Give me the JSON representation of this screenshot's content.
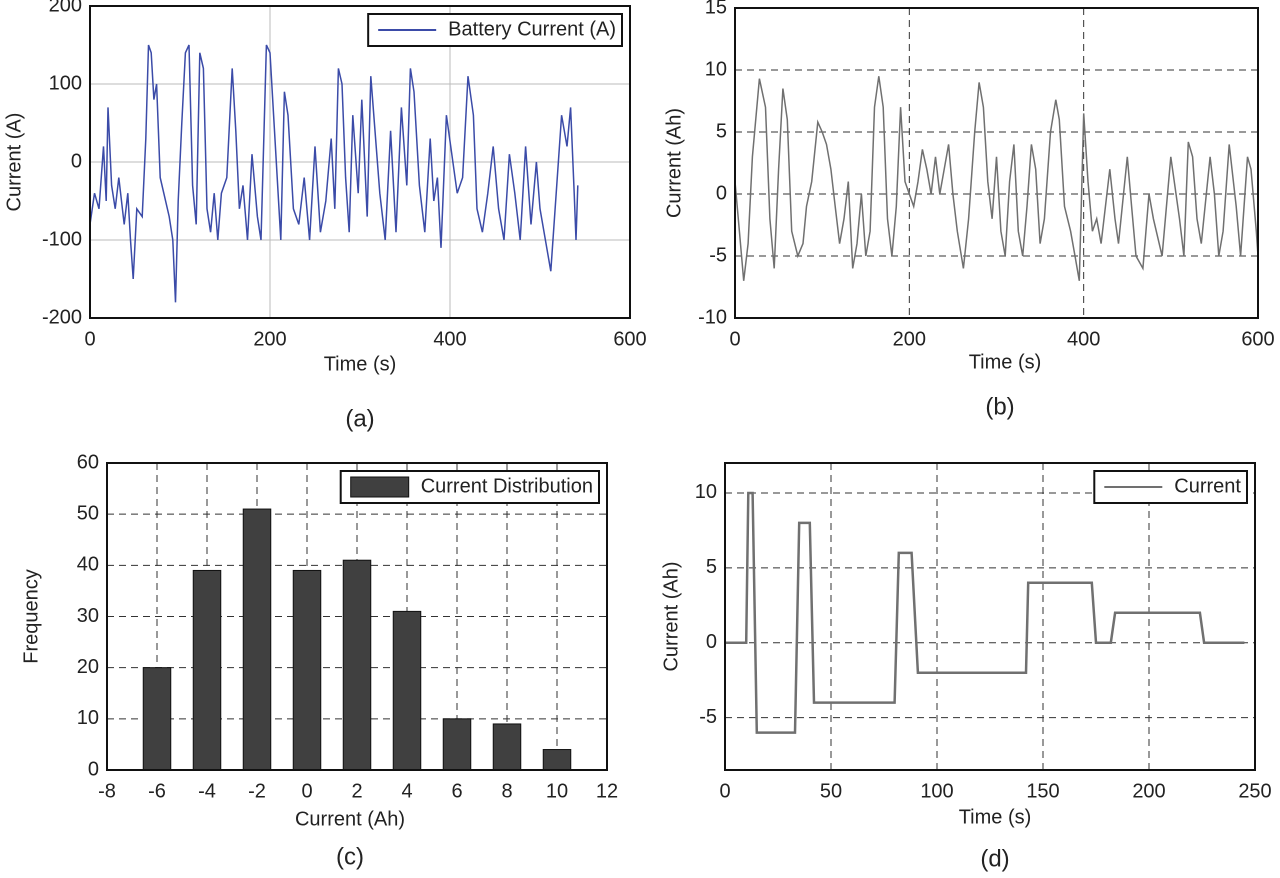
{
  "chart_data": [
    {
      "type": "line",
      "caption": "(a)",
      "xlabel": "Time (s)",
      "ylabel": "Current (A)",
      "xlim": [
        0,
        600
      ],
      "ylim": [
        -200,
        200
      ],
      "xticks": [
        0,
        200,
        400,
        600
      ],
      "yticks": [
        -200,
        -100,
        0,
        100,
        200
      ],
      "grid": true,
      "grid_style": "solid",
      "legend": "upper right",
      "x": [
        0,
        5,
        10,
        15,
        18,
        20,
        24,
        28,
        32,
        38,
        42,
        45,
        48,
        52,
        58,
        62,
        65,
        68,
        71,
        74,
        78,
        82,
        88,
        92,
        95,
        98,
        102,
        106,
        110,
        114,
        118,
        122,
        126,
        130,
        134,
        138,
        142,
        146,
        152,
        158,
        162,
        166,
        170,
        175,
        180,
        186,
        190,
        196,
        200,
        204,
        208,
        212,
        216,
        220,
        226,
        232,
        238,
        244,
        250,
        256,
        262,
        268,
        272,
        276,
        280,
        284,
        288,
        292,
        298,
        302,
        308,
        312,
        318,
        322,
        328,
        334,
        340,
        346,
        352,
        356,
        360,
        366,
        372,
        378,
        382,
        386,
        390,
        396,
        402,
        408,
        414,
        420,
        426,
        430,
        436,
        442,
        448,
        454,
        460,
        466,
        472,
        478,
        484,
        490,
        496,
        500,
        506,
        512,
        518,
        524,
        530,
        534,
        538,
        540,
        542
      ],
      "series": [
        {
          "name": "Battery Current (A)",
          "color": "#3b4ba8",
          "values": [
            -80,
            -40,
            -60,
            20,
            -50,
            70,
            -30,
            -60,
            -20,
            -80,
            -40,
            -100,
            -150,
            -60,
            -70,
            30,
            150,
            140,
            80,
            100,
            -20,
            -40,
            -70,
            -100,
            -180,
            -50,
            50,
            140,
            150,
            -30,
            -80,
            140,
            120,
            -60,
            -90,
            -40,
            -100,
            -40,
            -20,
            120,
            40,
            -60,
            -30,
            -100,
            10,
            -70,
            -100,
            150,
            140,
            60,
            -20,
            -100,
            90,
            60,
            -60,
            -80,
            -20,
            -100,
            20,
            -90,
            -50,
            30,
            -60,
            120,
            100,
            -20,
            -90,
            60,
            -40,
            80,
            -70,
            110,
            20,
            -40,
            -100,
            40,
            -90,
            70,
            -30,
            120,
            90,
            -30,
            -90,
            30,
            -50,
            -20,
            -110,
            60,
            10,
            -40,
            -20,
            110,
            60,
            -60,
            -90,
            -40,
            20,
            -60,
            -100,
            10,
            -40,
            -100,
            20,
            -80,
            0,
            -60,
            -100,
            -140,
            -40,
            60,
            20,
            70,
            -40,
            -100,
            -30
          ]
        }
      ]
    },
    {
      "type": "line",
      "caption": "(b)",
      "xlabel": "Time (s)",
      "ylabel": "Current (Ah)",
      "xlim": [
        0,
        600
      ],
      "ylim": [
        -10,
        15
      ],
      "xticks": [
        0,
        200,
        400,
        600
      ],
      "yticks": [
        -10,
        -5,
        0,
        5,
        10,
        15
      ],
      "grid": true,
      "grid_style": "dashed",
      "x": [
        0,
        5,
        10,
        15,
        20,
        28,
        35,
        40,
        45,
        50,
        55,
        60,
        65,
        72,
        78,
        82,
        88,
        95,
        100,
        105,
        110,
        115,
        120,
        125,
        130,
        135,
        140,
        145,
        150,
        155,
        160,
        165,
        170,
        175,
        180,
        185,
        190,
        195,
        200,
        205,
        210,
        215,
        220,
        225,
        230,
        235,
        240,
        245,
        250,
        255,
        262,
        268,
        275,
        280,
        285,
        290,
        295,
        300,
        305,
        310,
        315,
        320,
        325,
        330,
        335,
        340,
        345,
        350,
        355,
        362,
        368,
        372,
        378,
        385,
        390,
        395,
        400,
        405,
        410,
        415,
        420,
        430,
        436,
        440,
        450,
        455,
        460,
        468,
        475,
        480,
        490,
        500,
        510,
        515,
        520,
        525,
        530,
        535,
        545,
        550,
        555,
        560,
        567,
        575,
        580,
        588,
        592,
        598,
        600
      ],
      "series": [
        {
          "color": "#707070",
          "values": [
            1,
            -3,
            -7,
            -4,
            3,
            9.3,
            7,
            -2,
            -6,
            2,
            8.5,
            6,
            -3,
            -5,
            -4,
            -1,
            1,
            5.8,
            5,
            4,
            2,
            -1,
            -4,
            -2,
            1,
            -6,
            -4,
            0,
            -5,
            -3,
            7,
            9.5,
            7,
            -2,
            -5,
            -1,
            7,
            1,
            0,
            -1,
            1,
            3.6,
            2,
            0,
            3,
            0,
            2,
            4,
            0,
            -3,
            -6,
            -2,
            5,
            9,
            7,
            1,
            -2,
            3,
            -3,
            -5,
            1,
            4,
            -3,
            -5,
            -1,
            4,
            2,
            -4,
            -2,
            5,
            7.6,
            6,
            -1,
            -3,
            -5,
            -7,
            6.5,
            1,
            -3,
            -2,
            -4,
            2,
            -2,
            -4,
            3,
            -1,
            -5,
            -6,
            0,
            -2,
            -5,
            3,
            -2,
            -5,
            4.2,
            3,
            -2,
            -4,
            3,
            0,
            -5,
            -3,
            4,
            -1,
            -5,
            3,
            2,
            -3,
            -5
          ]
        }
      ]
    },
    {
      "type": "bar",
      "caption": "(c)",
      "xlabel": "Current (Ah)",
      "ylabel": "Frequency",
      "xlim": [
        -8,
        12
      ],
      "ylim": [
        0,
        60
      ],
      "xticks": [
        -8,
        -6,
        -4,
        -2,
        0,
        2,
        4,
        6,
        8,
        10,
        12
      ],
      "yticks": [
        0,
        10,
        20,
        30,
        40,
        50,
        60
      ],
      "grid": true,
      "grid_style": "dashed",
      "legend": "upper right",
      "x": [
        -6,
        -4,
        -2,
        0,
        2,
        4,
        6,
        8,
        10
      ],
      "series": [
        {
          "name": "Current Distribution",
          "color": "#404040",
          "values": [
            20,
            39,
            51,
            39,
            41,
            31,
            10,
            9,
            4
          ]
        }
      ]
    },
    {
      "type": "line",
      "caption": "(d)",
      "xlabel": "Time (s)",
      "ylabel": "Current (Ah)",
      "xlim": [
        0,
        250
      ],
      "ylim": [
        -8.5,
        12
      ],
      "xticks": [
        0,
        50,
        100,
        150,
        200,
        250
      ],
      "yticks": [
        -5,
        0,
        5,
        10
      ],
      "grid": true,
      "grid_style": "dashed",
      "legend": "upper right",
      "x": [
        0,
        10,
        11,
        13,
        15,
        33,
        35,
        40,
        42,
        80,
        82,
        88,
        91,
        142,
        143,
        173,
        175,
        182,
        184,
        224,
        226,
        245
      ],
      "series": [
        {
          "name": "Current",
          "color": "#707070",
          "values": [
            0,
            0,
            10,
            10,
            -6,
            -6,
            8,
            8,
            -4,
            -4,
            6,
            6,
            -2,
            -2,
            4,
            4,
            0,
            0,
            2,
            2,
            0,
            0
          ]
        }
      ]
    }
  ]
}
